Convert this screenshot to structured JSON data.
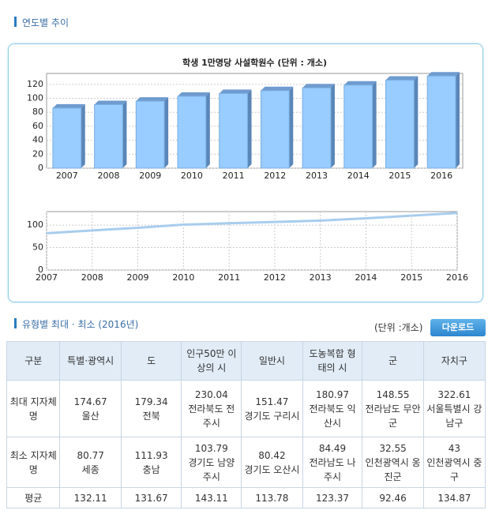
{
  "section1": {
    "title": "연도별 추이"
  },
  "chart_data": [
    {
      "type": "bar",
      "title": "학생 1만명당 사설학원수 (단위 : 개소)",
      "categories": [
        "2007",
        "2008",
        "2009",
        "2010",
        "2011",
        "2012",
        "2013",
        "2014",
        "2015",
        "2016"
      ],
      "values": [
        86,
        91,
        96,
        103,
        107,
        111,
        115,
        119,
        126,
        132
      ],
      "color": "#99ccff",
      "ylim": [
        0,
        130
      ],
      "yticks": [
        0,
        20,
        40,
        60,
        80,
        100,
        120
      ],
      "grid": true
    },
    {
      "type": "line",
      "x": [
        2007,
        2008,
        2009,
        2010,
        2011,
        2012,
        2013,
        2014,
        2015,
        2016
      ],
      "values": [
        82,
        88,
        94,
        101,
        104,
        107,
        110,
        115,
        121,
        127
      ],
      "color": "#a8cdee",
      "xlim": [
        2007,
        2016
      ],
      "xticks": [
        2007,
        2008,
        2009,
        2010,
        2011,
        2012,
        2013,
        2014,
        2015,
        2016
      ],
      "ylim": [
        0,
        130
      ],
      "yticks": [
        0,
        50,
        100
      ],
      "grid": true
    }
  ],
  "section2": {
    "title": "유형별 최대 · 최소 (2016년)",
    "unit": "(단위 :개소)",
    "button": "다운로드"
  },
  "table": {
    "header": [
      "구분",
      "특별·광역시",
      "도",
      "인구50만 이상의 시",
      "일반시",
      "도농복합 형태의 시",
      "군",
      "자치구"
    ],
    "rows": [
      {
        "label": "최대 지자체명",
        "cells": [
          {
            "value": 174.67,
            "name": "울산"
          },
          {
            "value": 179.34,
            "name": "전북"
          },
          {
            "value": 230.04,
            "name": "전라북도 전주시"
          },
          {
            "value": 151.47,
            "name": "경기도 구리시"
          },
          {
            "value": 180.97,
            "name": "전라북도 익산시"
          },
          {
            "value": 148.55,
            "name": "전라남도 무안군"
          },
          {
            "value": 322.61,
            "name": "서울특별시 강남구"
          }
        ]
      },
      {
        "label": "최소 지자체명",
        "cells": [
          {
            "value": 80.77,
            "name": "세종"
          },
          {
            "value": 111.93,
            "name": "충남"
          },
          {
            "value": 103.79,
            "name": "경기도 남양주시"
          },
          {
            "value": 80.42,
            "name": "경기도 오산시"
          },
          {
            "value": 84.49,
            "name": "전라남도 나주시"
          },
          {
            "value": 32.55,
            "name": "인천광역시 옹진군"
          },
          {
            "value": 43,
            "name": "인천광역시 중구"
          }
        ]
      },
      {
        "label": "평균",
        "cells": [
          {
            "value": 132.11
          },
          {
            "value": 131.67
          },
          {
            "value": 143.11
          },
          {
            "value": 113.78
          },
          {
            "value": 123.37
          },
          {
            "value": 92.46
          },
          {
            "value": 134.87
          }
        ]
      }
    ]
  }
}
